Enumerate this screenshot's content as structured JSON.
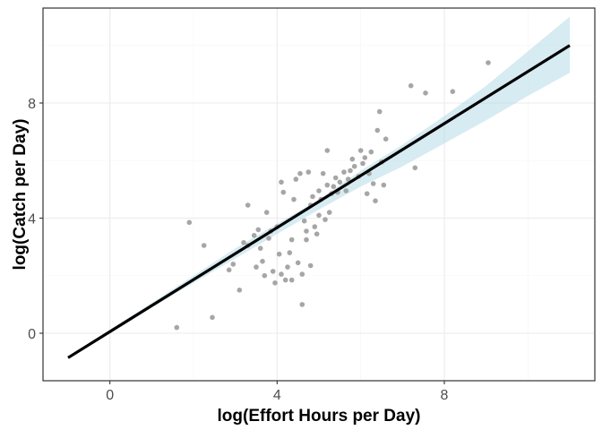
{
  "chart_data": {
    "type": "scatter",
    "xlabel": "log(Effort Hours per Day)",
    "ylabel": "log(Catch per Day)",
    "xlim": [
      -1.6,
      11.6
    ],
    "ylim": [
      -1.65,
      11.3
    ],
    "x_ticks": [
      0,
      4,
      8
    ],
    "y_ticks": [
      0,
      4,
      8
    ],
    "grid": true,
    "colors": {
      "points": "#a6a6a6",
      "line": "#000000",
      "ribbon": "#add8e6",
      "grid_major": "#ebebeb",
      "grid_minor": "#f4f4f4",
      "frame": "#333333"
    },
    "points": [
      {
        "x": 1.6,
        "y": 0.2
      },
      {
        "x": 1.9,
        "y": 3.85
      },
      {
        "x": 2.25,
        "y": 3.05
      },
      {
        "x": 2.45,
        "y": 0.55
      },
      {
        "x": 2.85,
        "y": 2.2
      },
      {
        "x": 2.95,
        "y": 2.4
      },
      {
        "x": 3.1,
        "y": 1.5
      },
      {
        "x": 3.2,
        "y": 3.15
      },
      {
        "x": 3.3,
        "y": 4.45
      },
      {
        "x": 3.3,
        "y": 3.05
      },
      {
        "x": 3.45,
        "y": 3.4
      },
      {
        "x": 3.5,
        "y": 2.3
      },
      {
        "x": 3.55,
        "y": 3.6
      },
      {
        "x": 3.6,
        "y": 2.95
      },
      {
        "x": 3.65,
        "y": 2.5
      },
      {
        "x": 3.7,
        "y": 2.0
      },
      {
        "x": 3.75,
        "y": 4.2
      },
      {
        "x": 3.8,
        "y": 3.3
      },
      {
        "x": 3.85,
        "y": 3.55
      },
      {
        "x": 3.9,
        "y": 2.15
      },
      {
        "x": 3.95,
        "y": 1.75
      },
      {
        "x": 4.0,
        "y": 3.7
      },
      {
        "x": 4.05,
        "y": 2.75
      },
      {
        "x": 4.1,
        "y": 5.25
      },
      {
        "x": 4.1,
        "y": 2.05
      },
      {
        "x": 4.15,
        "y": 4.9
      },
      {
        "x": 4.2,
        "y": 1.85
      },
      {
        "x": 4.25,
        "y": 2.3
      },
      {
        "x": 4.3,
        "y": 2.8
      },
      {
        "x": 4.35,
        "y": 3.25
      },
      {
        "x": 4.35,
        "y": 1.85
      },
      {
        "x": 4.4,
        "y": 4.65
      },
      {
        "x": 4.45,
        "y": 5.35
      },
      {
        "x": 4.5,
        "y": 2.45
      },
      {
        "x": 4.55,
        "y": 5.55
      },
      {
        "x": 4.6,
        "y": 2.05
      },
      {
        "x": 4.6,
        "y": 1.0
      },
      {
        "x": 4.65,
        "y": 3.9
      },
      {
        "x": 4.7,
        "y": 3.55
      },
      {
        "x": 4.7,
        "y": 3.25
      },
      {
        "x": 4.75,
        "y": 5.6
      },
      {
        "x": 4.8,
        "y": 2.35
      },
      {
        "x": 4.8,
        "y": 4.45
      },
      {
        "x": 4.85,
        "y": 4.75
      },
      {
        "x": 4.9,
        "y": 3.7
      },
      {
        "x": 4.95,
        "y": 3.45
      },
      {
        "x": 5.0,
        "y": 4.95
      },
      {
        "x": 5.0,
        "y": 4.1
      },
      {
        "x": 5.05,
        "y": 4.65
      },
      {
        "x": 5.1,
        "y": 5.55
      },
      {
        "x": 5.15,
        "y": 3.95
      },
      {
        "x": 5.2,
        "y": 6.35
      },
      {
        "x": 5.2,
        "y": 5.15
      },
      {
        "x": 5.25,
        "y": 4.2
      },
      {
        "x": 5.3,
        "y": 4.85
      },
      {
        "x": 5.35,
        "y": 5.1
      },
      {
        "x": 5.4,
        "y": 5.4
      },
      {
        "x": 5.45,
        "y": 4.9
      },
      {
        "x": 5.5,
        "y": 5.25
      },
      {
        "x": 5.6,
        "y": 5.6
      },
      {
        "x": 5.65,
        "y": 4.95
      },
      {
        "x": 5.7,
        "y": 5.35
      },
      {
        "x": 5.75,
        "y": 5.65
      },
      {
        "x": 5.8,
        "y": 6.05
      },
      {
        "x": 5.85,
        "y": 5.8
      },
      {
        "x": 5.95,
        "y": 5.45
      },
      {
        "x": 6.0,
        "y": 6.35
      },
      {
        "x": 6.05,
        "y": 5.9
      },
      {
        "x": 6.1,
        "y": 6.1
      },
      {
        "x": 6.15,
        "y": 4.85
      },
      {
        "x": 6.2,
        "y": 5.55
      },
      {
        "x": 6.25,
        "y": 6.3
      },
      {
        "x": 6.3,
        "y": 5.2
      },
      {
        "x": 6.35,
        "y": 4.6
      },
      {
        "x": 6.4,
        "y": 7.05
      },
      {
        "x": 6.45,
        "y": 7.7
      },
      {
        "x": 6.5,
        "y": 5.95
      },
      {
        "x": 6.55,
        "y": 5.15
      },
      {
        "x": 6.6,
        "y": 6.75
      },
      {
        "x": 7.2,
        "y": 8.6
      },
      {
        "x": 7.3,
        "y": 5.75
      },
      {
        "x": 7.55,
        "y": 8.35
      },
      {
        "x": 8.2,
        "y": 8.4
      },
      {
        "x": 9.05,
        "y": 9.4
      }
    ],
    "fit_line": {
      "x": [
        -1.0,
        11.0
      ],
      "y": [
        -0.85,
        10.0
      ]
    },
    "confidence_band": {
      "x": [
        -1.0,
        1.0,
        2.0,
        3.0,
        4.0,
        5.0,
        6.0,
        7.0,
        8.0,
        9.0,
        10.0,
        11.0
      ],
      "lower": [
        -0.9,
        0.9,
        1.75,
        2.6,
        3.45,
        4.3,
        5.1,
        5.8,
        6.6,
        7.4,
        8.25,
        9.05
      ],
      "upper": [
        -0.8,
        1.05,
        2.0,
        2.95,
        3.8,
        4.65,
        5.65,
        6.55,
        7.55,
        8.6,
        9.8,
        11.0
      ]
    }
  }
}
